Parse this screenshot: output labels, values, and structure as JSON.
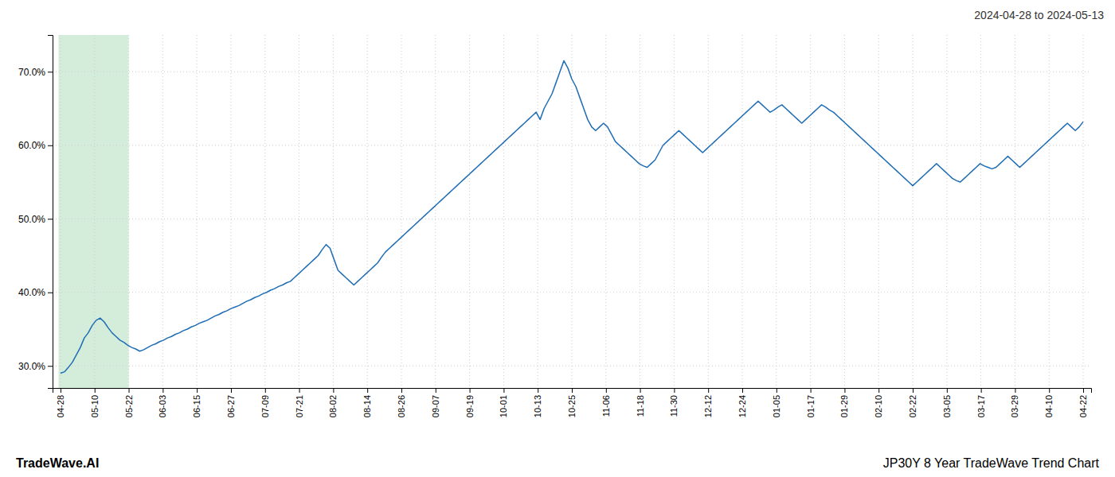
{
  "chart_data": {
    "type": "line",
    "title": "2024-04-28 to 2024-05-13",
    "annotations": [
      "TradeWave.AI",
      "JP30Y 8 Year TradeWave Trend Chart"
    ],
    "color": "#1f6db5",
    "grid": true,
    "highlight": {
      "range": [
        -0.5,
        17.2
      ],
      "color": "#d4edda"
    },
    "xlim": [
      -2,
      260
    ],
    "xticks": [
      {
        "value": 0,
        "label": "04-28"
      },
      {
        "value": 8.6,
        "label": "05-10"
      },
      {
        "value": 17.2,
        "label": "05-22"
      },
      {
        "value": 25.8,
        "label": "06-03"
      },
      {
        "value": 34.4,
        "label": "06-15"
      },
      {
        "value": 43,
        "label": "06-27"
      },
      {
        "value": 51.6,
        "label": "07-09"
      },
      {
        "value": 60.2,
        "label": "07-21"
      },
      {
        "value": 68.8,
        "label": "08-02"
      },
      {
        "value": 77.4,
        "label": "08-14"
      },
      {
        "value": 86,
        "label": "08-26"
      },
      {
        "value": 94.6,
        "label": "09-07"
      },
      {
        "value": 103.2,
        "label": "09-19"
      },
      {
        "value": 111.8,
        "label": "10-01"
      },
      {
        "value": 120.4,
        "label": "10-13"
      },
      {
        "value": 129,
        "label": "10-25"
      },
      {
        "value": 137.6,
        "label": "11-06"
      },
      {
        "value": 146.2,
        "label": "11-18"
      },
      {
        "value": 154.8,
        "label": "11-30"
      },
      {
        "value": 163.4,
        "label": "12-12"
      },
      {
        "value": 172,
        "label": "12-24"
      },
      {
        "value": 180.6,
        "label": "01-05"
      },
      {
        "value": 189.2,
        "label": "01-17"
      },
      {
        "value": 197.8,
        "label": "01-29"
      },
      {
        "value": 206.4,
        "label": "02-10"
      },
      {
        "value": 215,
        "label": "02-22"
      },
      {
        "value": 223.6,
        "label": "03-05"
      },
      {
        "value": 232.2,
        "label": "03-17"
      },
      {
        "value": 240.8,
        "label": "03-29"
      },
      {
        "value": 249.4,
        "label": "04-10"
      },
      {
        "value": 258,
        "label": "04-22"
      }
    ],
    "ylim": [
      27.0,
      75.0
    ],
    "yticks": [
      {
        "value": 30.0,
        "label": "30.0%"
      },
      {
        "value": 40.0,
        "label": "40.0%"
      },
      {
        "value": 50.0,
        "label": "50.0%"
      },
      {
        "value": 60.0,
        "label": "60.0%"
      },
      {
        "value": 70.0,
        "label": "70.0%"
      }
    ],
    "x": [
      0,
      1,
      2,
      3,
      4,
      5,
      6,
      7,
      8,
      9,
      10,
      11,
      12,
      13,
      14,
      15,
      16,
      17,
      18,
      19,
      20,
      21,
      22,
      23,
      24,
      25,
      26,
      27,
      28,
      29,
      30,
      31,
      32,
      33,
      34,
      35,
      36,
      37,
      38,
      39,
      40,
      41,
      42,
      43,
      44,
      45,
      46,
      47,
      48,
      49,
      50,
      51,
      52,
      53,
      54,
      55,
      56,
      57,
      58,
      59,
      60,
      61,
      62,
      63,
      64,
      65,
      66,
      67,
      68,
      69,
      70,
      71,
      72,
      73,
      74,
      75,
      76,
      77,
      78,
      79,
      80,
      81,
      82,
      83,
      84,
      85,
      86,
      87,
      88,
      89,
      90,
      91,
      92,
      93,
      94,
      95,
      96,
      97,
      98,
      99,
      100,
      101,
      102,
      103,
      104,
      105,
      106,
      107,
      108,
      109,
      110,
      111,
      112,
      113,
      114,
      115,
      116,
      117,
      118,
      119,
      120,
      121,
      122,
      123,
      124,
      125,
      126,
      127,
      128,
      129,
      130,
      131,
      132,
      133,
      134,
      135,
      136,
      137,
      138,
      139,
      140,
      141,
      142,
      143,
      144,
      145,
      146,
      147,
      148,
      149,
      150,
      151,
      152,
      153,
      154,
      155,
      156,
      157,
      158,
      159,
      160,
      161,
      162,
      163,
      164,
      165,
      166,
      167,
      168,
      169,
      170,
      171,
      172,
      173,
      174,
      175,
      176,
      177,
      178,
      179,
      180,
      181,
      182,
      183,
      184,
      185,
      186,
      187,
      188,
      189,
      190,
      191,
      192,
      193,
      194,
      195,
      196,
      197,
      198,
      199,
      200,
      201,
      202,
      203,
      204,
      205,
      206,
      207,
      208,
      209,
      210,
      211,
      212,
      213,
      214,
      215,
      216,
      217,
      218,
      219,
      220,
      221,
      222,
      223,
      224,
      225,
      226,
      227,
      228,
      229,
      230,
      231,
      232,
      233,
      234,
      235,
      236,
      237,
      238,
      239,
      240,
      241,
      242,
      243,
      244,
      245,
      246,
      247,
      248,
      249,
      250,
      251,
      252,
      253,
      254,
      255,
      256,
      257,
      258
    ],
    "values": [
      29.0,
      29.2,
      29.8,
      30.5,
      31.5,
      32.5,
      33.8,
      34.5,
      35.5,
      36.2,
      36.5,
      36.0,
      35.2,
      34.5,
      34.0,
      33.5,
      33.2,
      32.8,
      32.5,
      32.3,
      32.0,
      32.2,
      32.5,
      32.8,
      33.0,
      33.3,
      33.5,
      33.8,
      34.0,
      34.3,
      34.5,
      34.8,
      35.0,
      35.3,
      35.5,
      35.8,
      36.0,
      36.2,
      36.5,
      36.8,
      37.0,
      37.3,
      37.5,
      37.8,
      38.0,
      38.2,
      38.5,
      38.8,
      39.0,
      39.3,
      39.5,
      39.8,
      40.0,
      40.3,
      40.5,
      40.8,
      41.0,
      41.3,
      41.5,
      42.0,
      42.5,
      43.0,
      43.5,
      44.0,
      44.5,
      45.0,
      45.8,
      46.5,
      46.0,
      44.5,
      43.0,
      42.5,
      42.0,
      41.5,
      41.0,
      41.5,
      42.0,
      42.5,
      43.0,
      43.5,
      44.0,
      44.8,
      45.5,
      46.0,
      46.5,
      47.0,
      47.5,
      48.0,
      48.5,
      49.0,
      49.5,
      50.0,
      50.5,
      51.0,
      51.5,
      52.0,
      52.5,
      53.0,
      53.5,
      54.0,
      54.5,
      55.0,
      55.5,
      56.0,
      56.5,
      57.0,
      57.5,
      58.0,
      58.5,
      59.0,
      59.5,
      60.0,
      60.5,
      61.0,
      61.5,
      62.0,
      62.5,
      63.0,
      63.5,
      64.0,
      64.5,
      63.5,
      65.0,
      66.0,
      67.0,
      68.5,
      70.0,
      71.5,
      70.5,
      69.0,
      68.0,
      66.5,
      65.0,
      63.5,
      62.5,
      62.0,
      62.5,
      63.0,
      62.5,
      61.5,
      60.5,
      60.0,
      59.5,
      59.0,
      58.5,
      58.0,
      57.5,
      57.2,
      57.0,
      57.5,
      58.0,
      59.0,
      60.0,
      60.5,
      61.0,
      61.5,
      62.0,
      61.5,
      61.0,
      60.5,
      60.0,
      59.5,
      59.0,
      59.5,
      60.0,
      60.5,
      61.0,
      61.5,
      62.0,
      62.5,
      63.0,
      63.5,
      64.0,
      64.5,
      65.0,
      65.5,
      66.0,
      65.5,
      65.0,
      64.5,
      64.8,
      65.2,
      65.5,
      65.0,
      64.5,
      64.0,
      63.5,
      63.0,
      63.5,
      64.0,
      64.5,
      65.0,
      65.5,
      65.2,
      64.8,
      64.5,
      64.0,
      63.5,
      63.0,
      62.5,
      62.0,
      61.5,
      61.0,
      60.5,
      60.0,
      59.5,
      59.0,
      58.5,
      58.0,
      57.5,
      57.0,
      56.5,
      56.0,
      55.5,
      55.0,
      54.5,
      55.0,
      55.5,
      56.0,
      56.5,
      57.0,
      57.5,
      57.0,
      56.5,
      56.0,
      55.5,
      55.2,
      55.0,
      55.5,
      56.0,
      56.5,
      57.0,
      57.5,
      57.2,
      57.0,
      56.8,
      57.0,
      57.5,
      58.0,
      58.5,
      58.0,
      57.5,
      57.0,
      57.5,
      58.0,
      58.5,
      59.0,
      59.5,
      60.0,
      60.5,
      61.0,
      61.5,
      62.0,
      62.5,
      63.0,
      62.5,
      62.0,
      62.5,
      63.2
    ]
  }
}
